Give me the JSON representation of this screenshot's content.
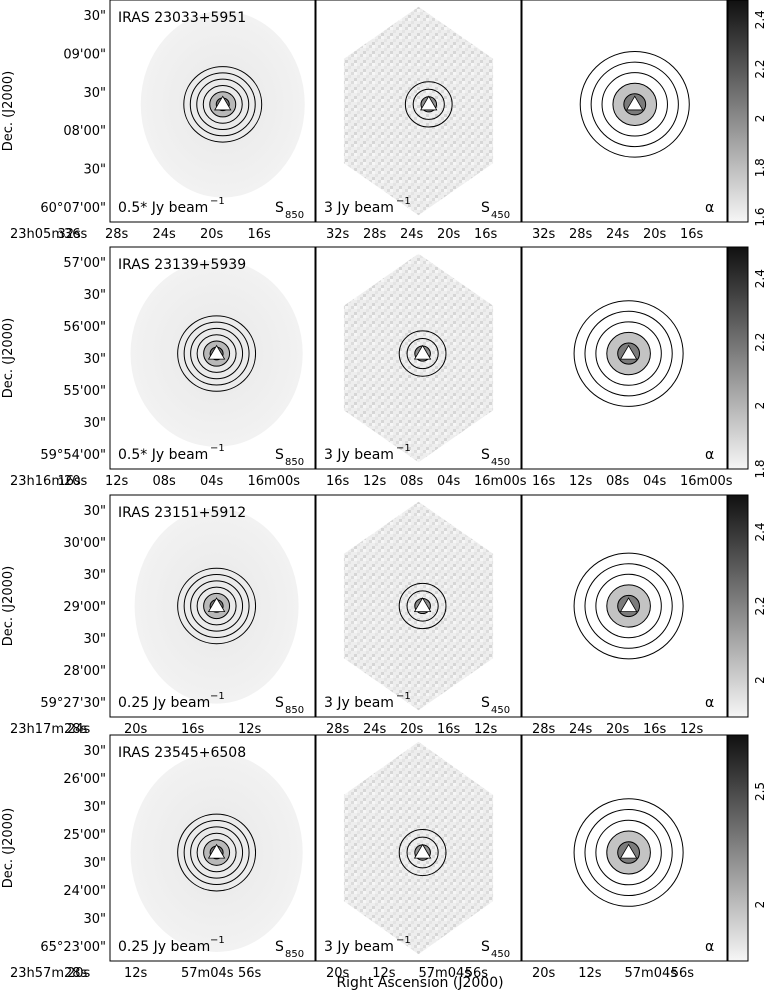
{
  "figure": {
    "xlabel": "Right Ascension (J2000)",
    "ylabel": "Dec. (J2000)",
    "units": "Jy beam",
    "units_exponent": "−1",
    "rows": [
      {
        "source": "IRAS 23033+5951",
        "scale_850": "0.5*",
        "scale_450": "3",
        "panel_labels": [
          "S",
          "S",
          "α"
        ],
        "band_subs": [
          "850",
          "450"
        ],
        "dec_ticks": [
          "30\"",
          "09'00\"",
          "30\"",
          "08'00\"",
          "30\"",
          "60°07'00\""
        ],
        "ra_ticks_first": [
          "23h05m36s",
          "32s",
          "28s",
          "24s",
          "20s",
          "16s"
        ],
        "ra_ticks_other": [
          "32s",
          "28s",
          "24s",
          "20s",
          "16s"
        ],
        "colorbar": {
          "ticks": [
            "2.4",
            "2.2",
            "2",
            "1.8",
            "1.6"
          ],
          "range": [
            1.58,
            2.48
          ]
        }
      },
      {
        "source": "IRAS 23139+5939",
        "scale_850": "0.5*",
        "scale_450": "3",
        "panel_labels": [
          "S",
          "S",
          "α"
        ],
        "band_subs": [
          "850",
          "450"
        ],
        "dec_ticks": [
          "57'00\"",
          "30\"",
          "56'00\"",
          "30\"",
          "55'00\"",
          "30\"",
          "59°54'00\""
        ],
        "ra_ticks_first": [
          "23h16m20s",
          "16s",
          "12s",
          "08s",
          "04s",
          "16m00s"
        ],
        "ra_ticks_other": [
          "16s",
          "12s",
          "08s",
          "04s",
          "16m00s"
        ],
        "colorbar": {
          "ticks": [
            "2.4",
            "2.2",
            "2",
            "1.8"
          ],
          "range": [
            1.8,
            2.5
          ]
        }
      },
      {
        "source": "IRAS 23151+5912",
        "scale_850": "0.25",
        "scale_450": "3",
        "panel_labels": [
          "S",
          "S",
          "α"
        ],
        "band_subs": [
          "850",
          "450"
        ],
        "dec_ticks": [
          "30\"",
          "30'00\"",
          "30\"",
          "29'00\"",
          "30\"",
          "28'00\"",
          "59°27'30\""
        ],
        "ra_ticks_first": [
          "23h17m28s",
          "24s",
          "20s",
          "16s",
          "12s"
        ],
        "ra_ticks_other": [
          "28s",
          "24s",
          "20s",
          "16s",
          "12s"
        ],
        "colorbar": {
          "ticks": [
            "2.4",
            "2.2",
            "2"
          ],
          "range": [
            1.9,
            2.5
          ]
        }
      },
      {
        "source": "IRAS 23545+6508",
        "scale_850": "0.25",
        "scale_450": "3",
        "panel_labels": [
          "S",
          "S",
          "α"
        ],
        "band_subs": [
          "850",
          "450"
        ],
        "dec_ticks": [
          "30\"",
          "26'00\"",
          "30\"",
          "25'00\"",
          "30\"",
          "24'00\"",
          "30\"",
          "65°23'00\""
        ],
        "ra_ticks_first": [
          "23h57m28s",
          "20s",
          "12s",
          "57m04s",
          "56s"
        ],
        "ra_ticks_other": [
          "20s",
          "12s",
          "57m04s",
          "56s"
        ],
        "colorbar": {
          "ticks": [
            "2.5",
            "2"
          ],
          "range": [
            1.75,
            2.75
          ]
        }
      }
    ]
  }
}
